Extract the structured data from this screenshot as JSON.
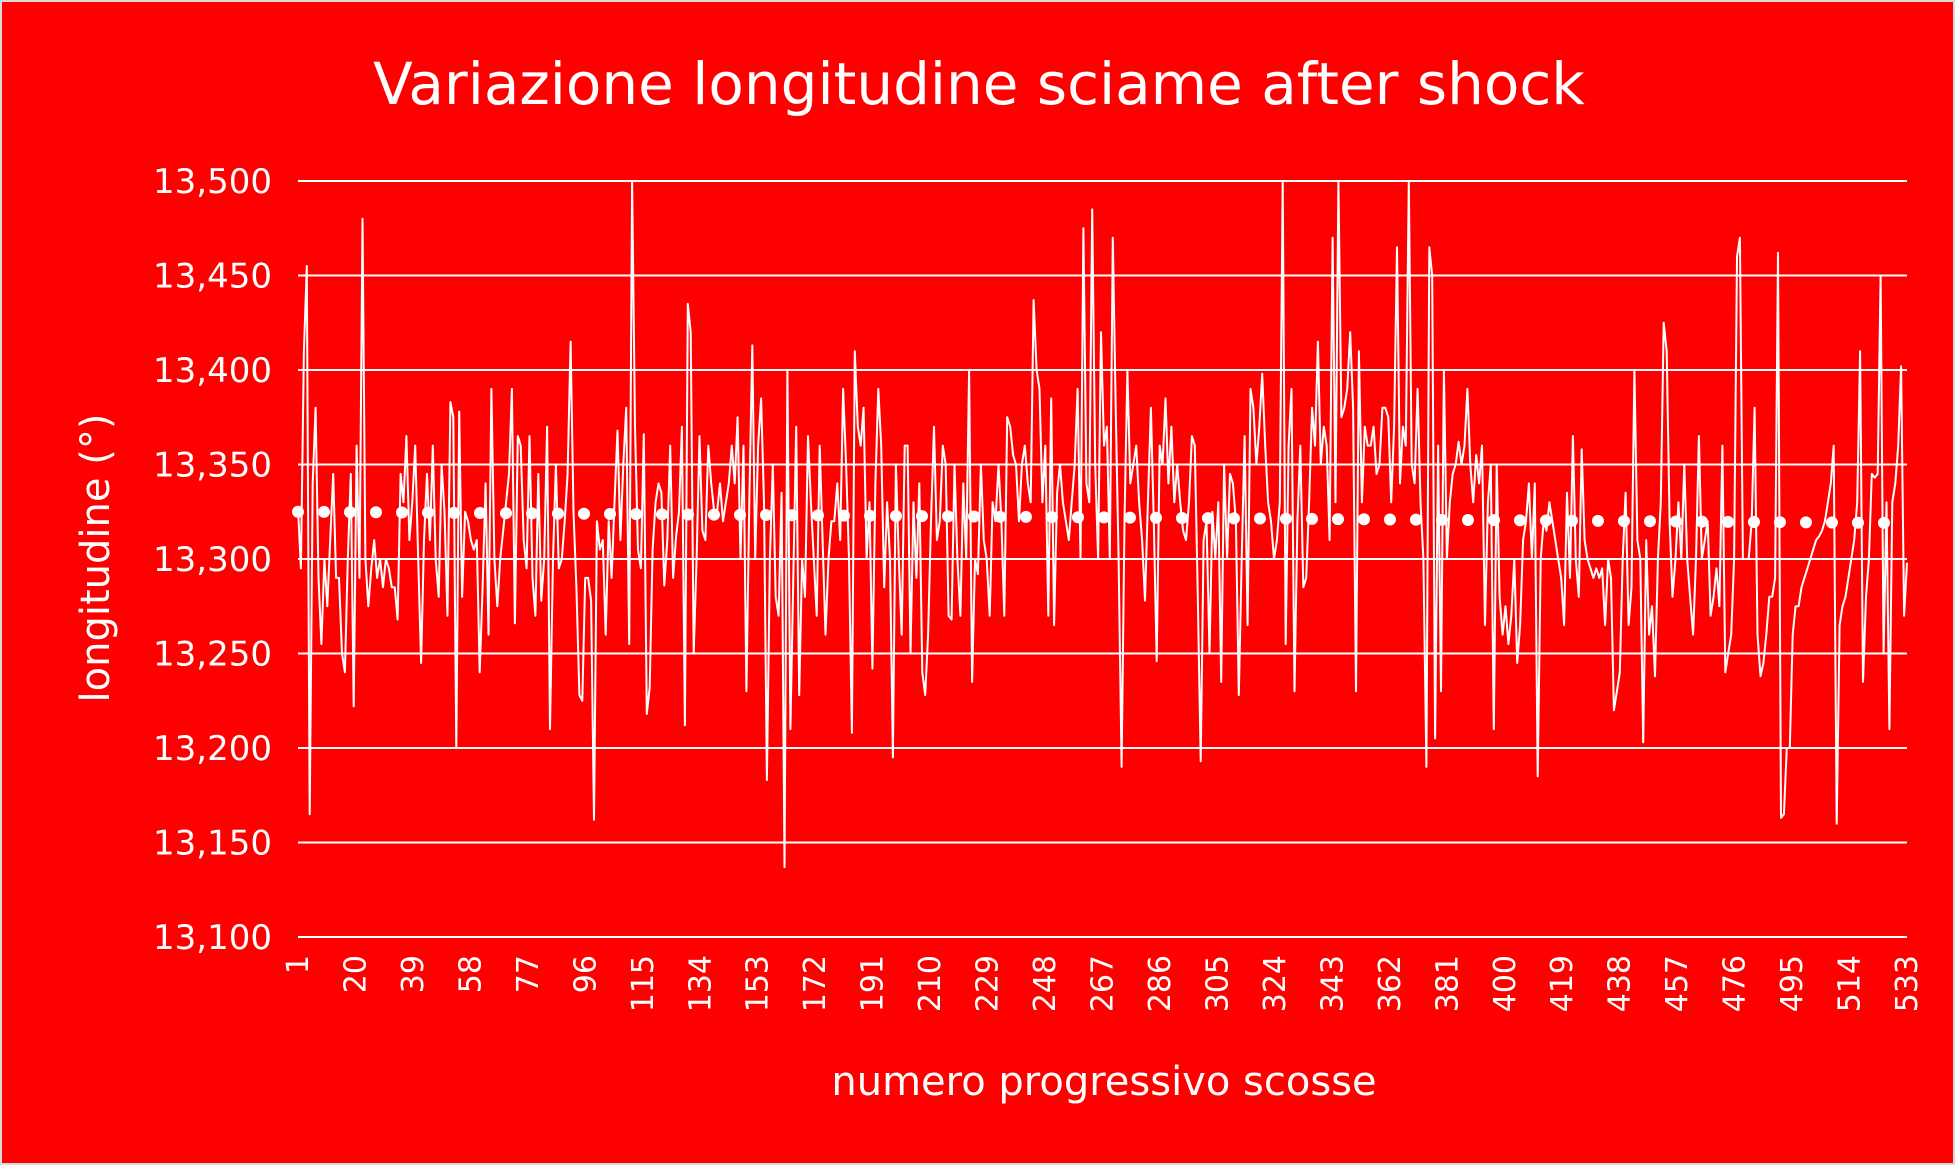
{
  "colors": {
    "background": "#ff0000",
    "line": "#ffffff",
    "text": "#ffffff",
    "frame": "#d9d9d9"
  },
  "chart_data": {
    "type": "line",
    "title": "Variazione longitudine sciame after shock",
    "xlabel": "numero progressivo scosse",
    "ylabel": "longitudine (°)",
    "ylim": [
      13.1,
      13.5
    ],
    "yticks": [
      13.1,
      13.15,
      13.2,
      13.25,
      13.3,
      13.35,
      13.4,
      13.45,
      13.5
    ],
    "ytick_labels": [
      "13,100",
      "13,150",
      "13,200",
      "13,250",
      "13,300",
      "13,350",
      "13,400",
      "13,450",
      "13,500"
    ],
    "xlim": [
      1,
      533
    ],
    "xticks": [
      1,
      20,
      39,
      58,
      77,
      96,
      115,
      134,
      153,
      172,
      191,
      210,
      229,
      248,
      267,
      286,
      305,
      324,
      343,
      362,
      381,
      400,
      419,
      438,
      457,
      476,
      495,
      514,
      533
    ],
    "grid": true,
    "legend": "none",
    "series": [
      {
        "style": "solid",
        "x_start": 1,
        "x_step": 1,
        "note_resolution": "approximate trace read from the plot, one value per event",
        "values": [
          13.327,
          13.295,
          13.41,
          13.455,
          13.165,
          13.34,
          13.38,
          13.29,
          13.255,
          13.3,
          13.275,
          13.31,
          13.345,
          13.29,
          13.29,
          13.25,
          13.24,
          13.3,
          13.345,
          13.222,
          13.36,
          13.29,
          13.48,
          13.3,
          13.275,
          13.295,
          13.31,
          13.29,
          13.3,
          13.285,
          13.3,
          13.295,
          13.285,
          13.285,
          13.268,
          13.345,
          13.33,
          13.365,
          13.31,
          13.33,
          13.36,
          13.3,
          13.245,
          13.31,
          13.345,
          13.31,
          13.36,
          13.3,
          13.28,
          13.35,
          13.325,
          13.27,
          13.383,
          13.375,
          13.2,
          13.378,
          13.28,
          13.325,
          13.32,
          13.31,
          13.305,
          13.31,
          13.24,
          13.285,
          13.34,
          13.26,
          13.39,
          13.3,
          13.275,
          13.3,
          13.315,
          13.33,
          13.345,
          13.39,
          13.266,
          13.365,
          13.36,
          13.31,
          13.295,
          13.365,
          13.29,
          13.27,
          13.345,
          13.278,
          13.3,
          13.37,
          13.21,
          13.3,
          13.35,
          13.295,
          13.3,
          13.32,
          13.345,
          13.415,
          13.325,
          13.285,
          13.228,
          13.225,
          13.29,
          13.29,
          13.278,
          13.162,
          13.32,
          13.305,
          13.31,
          13.26,
          13.32,
          13.29,
          13.33,
          13.368,
          13.31,
          13.35,
          13.38,
          13.255,
          13.5,
          13.37,
          13.305,
          13.295,
          13.366,
          13.218,
          13.232,
          13.305,
          13.33,
          13.34,
          13.335,
          13.286,
          13.31,
          13.36,
          13.29,
          13.312,
          13.325,
          13.37,
          13.212,
          13.435,
          13.42,
          13.25,
          13.3,
          13.365,
          13.315,
          13.31,
          13.36,
          13.34,
          13.325,
          13.325,
          13.34,
          13.32,
          13.33,
          13.34,
          13.36,
          13.34,
          13.375,
          13.3,
          13.36,
          13.23,
          13.33,
          13.413,
          13.3,
          13.36,
          13.385,
          13.33,
          13.183,
          13.3,
          13.35,
          13.28,
          13.27,
          13.335,
          13.137,
          13.4,
          13.21,
          13.29,
          13.37,
          13.228,
          13.3,
          13.28,
          13.365,
          13.33,
          13.3,
          13.27,
          13.36,
          13.31,
          13.26,
          13.3,
          13.32,
          13.32,
          13.34,
          13.31,
          13.39,
          13.35,
          13.3,
          13.208,
          13.41,
          13.37,
          13.36,
          13.38,
          13.3,
          13.33,
          13.242,
          13.34,
          13.39,
          13.36,
          13.285,
          13.33,
          13.3,
          13.195,
          13.35,
          13.3,
          13.26,
          13.36,
          13.36,
          13.25,
          13.33,
          13.29,
          13.34,
          13.24,
          13.228,
          13.26,
          13.32,
          13.37,
          13.31,
          13.32,
          13.36,
          13.35,
          13.27,
          13.268,
          13.35,
          13.3,
          13.27,
          13.34,
          13.3,
          13.4,
          13.235,
          13.3,
          13.292,
          13.35,
          13.31,
          13.3,
          13.27,
          13.33,
          13.32,
          13.35,
          13.32,
          13.27,
          13.375,
          13.37,
          13.355,
          13.35,
          13.32,
          13.35,
          13.36,
          13.34,
          13.33,
          13.437,
          13.4,
          13.39,
          13.33,
          13.36,
          13.27,
          13.385,
          13.265,
          13.335,
          13.35,
          13.33,
          13.32,
          13.31,
          13.33,
          13.35,
          13.39,
          13.3,
          13.475,
          13.34,
          13.33,
          13.485,
          13.35,
          13.3,
          13.42,
          13.36,
          13.37,
          13.3,
          13.47,
          13.38,
          13.3,
          13.19,
          13.32,
          13.4,
          13.34,
          13.35,
          13.36,
          13.33,
          13.31,
          13.278,
          13.33,
          13.38,
          13.32,
          13.246,
          13.36,
          13.35,
          13.385,
          13.34,
          13.37,
          13.33,
          13.35,
          13.33,
          13.315,
          13.31,
          13.33,
          13.365,
          13.36,
          13.28,
          13.193,
          13.31,
          13.32,
          13.25,
          13.325,
          13.3,
          13.33,
          13.235,
          13.35,
          13.3,
          13.345,
          13.34,
          13.32,
          13.228,
          13.3,
          13.365,
          13.265,
          13.39,
          13.38,
          13.35,
          13.37,
          13.398,
          13.36,
          13.33,
          13.32,
          13.3,
          13.31,
          13.33,
          13.5,
          13.255,
          13.36,
          13.39,
          13.23,
          13.32,
          13.36,
          13.285,
          13.29,
          13.33,
          13.38,
          13.36,
          13.415,
          13.35,
          13.37,
          13.36,
          13.31,
          13.47,
          13.33,
          13.5,
          13.375,
          13.38,
          13.39,
          13.42,
          13.38,
          13.23,
          13.41,
          13.33,
          13.37,
          13.36,
          13.36,
          13.37,
          13.345,
          13.35,
          13.38,
          13.38,
          13.375,
          13.33,
          13.37,
          13.465,
          13.34,
          13.37,
          13.36,
          13.5,
          13.35,
          13.34,
          13.39,
          13.33,
          13.3,
          13.19,
          13.465,
          13.45,
          13.205,
          13.36,
          13.23,
          13.4,
          13.3,
          13.33,
          13.345,
          13.35,
          13.362,
          13.35,
          13.36,
          13.39,
          13.35,
          13.33,
          13.355,
          13.34,
          13.36,
          13.265,
          13.33,
          13.35,
          13.21,
          13.35,
          13.28,
          13.26,
          13.275,
          13.255,
          13.27,
          13.3,
          13.245,
          13.265,
          13.31,
          13.32,
          13.34,
          13.3,
          13.34,
          13.185,
          13.3,
          13.32,
          13.315,
          13.33,
          13.32,
          13.31,
          13.3,
          13.29,
          13.265,
          13.335,
          13.29,
          13.365,
          13.3,
          13.28,
          13.358,
          13.31,
          13.3,
          13.295,
          13.29,
          13.295,
          13.29,
          13.295,
          13.265,
          13.3,
          13.29,
          13.22,
          13.23,
          13.24,
          13.3,
          13.335,
          13.265,
          13.285,
          13.4,
          13.31,
          13.3,
          13.203,
          13.31,
          13.26,
          13.275,
          13.238,
          13.3,
          13.33,
          13.425,
          13.41,
          13.32,
          13.28,
          13.3,
          13.33,
          13.3,
          13.35,
          13.3,
          13.28,
          13.26,
          13.3,
          13.365,
          13.3,
          13.31,
          13.32,
          13.27,
          13.28,
          13.295,
          13.275,
          13.36,
          13.24,
          13.25,
          13.26,
          13.3,
          13.46,
          13.47,
          13.3,
          13.3,
          13.3,
          13.32,
          13.38,
          13.26,
          13.238,
          13.245,
          13.26,
          13.28,
          13.28,
          13.29,
          13.462,
          13.163,
          13.165,
          13.2,
          13.2,
          13.26,
          13.275,
          13.275,
          13.285,
          13.29,
          13.295,
          13.3,
          13.305,
          13.31,
          13.312,
          13.315,
          13.32,
          13.33,
          13.34,
          13.36,
          13.16,
          13.265,
          13.275,
          13.28,
          13.29,
          13.3,
          13.31,
          13.33,
          13.41,
          13.235,
          13.28,
          13.3,
          13.345,
          13.343,
          13.345,
          13.45,
          13.25,
          13.33,
          13.21,
          13.33,
          13.34,
          13.36,
          13.402,
          13.27,
          13.298
        ]
      },
      {
        "style": "dotted-trend",
        "x": [
          1,
          533
        ],
        "values": [
          13.325,
          13.319
        ]
      }
    ]
  }
}
